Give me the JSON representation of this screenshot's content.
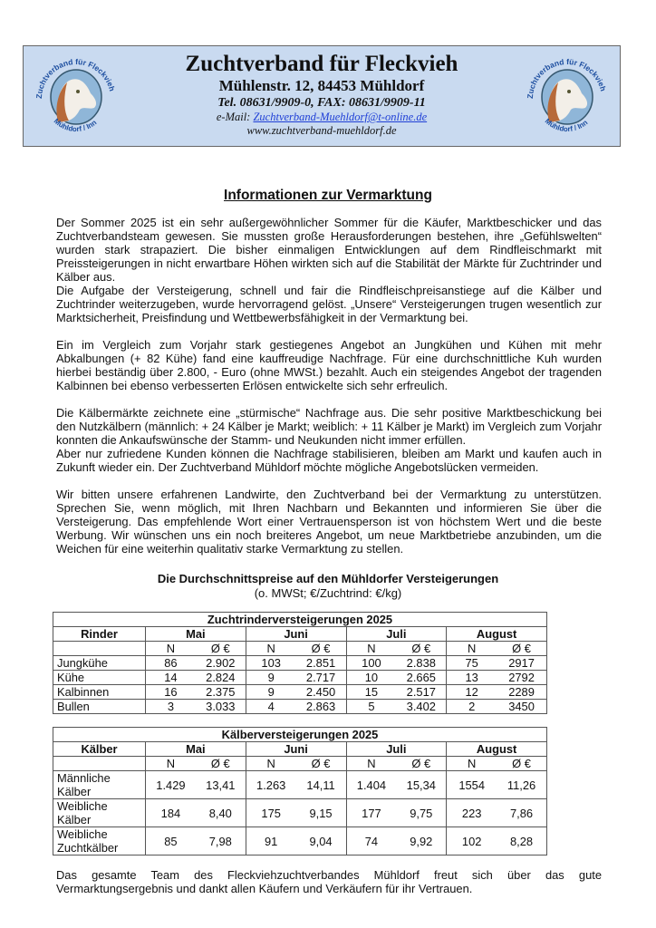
{
  "header": {
    "org_name": "Zuchtverband für Fleckvieh",
    "address": "Mühlenstr. 12, 84453 Mühldorf",
    "phone_fax": "Tel. 08631/9909-0, FAX: 08631/9909-11",
    "email_label": "e-Mail: ",
    "email": "Zuchtverband-Muehldorf@t-online.de",
    "website": "www.zuchtverband-muehldorf.de",
    "logo_text_top": "Zuchtverband für Fleckvieh",
    "logo_text_bottom": "Mühldorf / Inn"
  },
  "title": "Informationen zur Vermarktung",
  "paragraphs": [
    "Der Sommer 2025 ist ein sehr außergewöhnlicher Sommer für die Käufer, Marktbeschicker und das Zuchtverbandsteam gewesen. Sie mussten große Herausforderungen bestehen, ihre „Gefühlswelten“ wurden stark strapaziert. Die bisher einmaligen Entwicklungen auf dem Rindfleischmarkt mit Preissteigerungen in nicht erwartbare Höhen wirkten sich auf die Stabilität der Märkte für Zuchtrinder und Kälber aus.",
    "Die Aufgabe der Versteigerung, schnell und fair die Rindfleischpreisanstiege auf die Kälber und Zuchtrinder weiterzugeben, wurde hervorragend gelöst. „Unsere“ Versteigerungen trugen wesentlich zur Marktsicherheit, Preisfindung und Wettbewerbsfähigkeit in der Vermarktung bei.",
    "Ein im Vergleich zum Vorjahr stark gestiegenes Angebot an Jungkühen und Kühen mit mehr Abkalbungen (+ 82 Kühe) fand eine kauffreudige Nachfrage. Für eine durchschnittliche Kuh wurden hierbei beständig über 2.800, - Euro (ohne MWSt.) bezahlt. Auch ein steigendes Angebot der tragenden Kalbinnen bei ebenso verbesserten Erlösen entwickelte sich sehr erfreulich.",
    "Die Kälbermärkte zeichnete eine „stürmische“ Nachfrage aus. Die sehr positive Marktbeschickung bei den Nutzkälbern (männlich: + 24 Kälber je Markt; weiblich: + 11 Kälber je Markt) im Vergleich zum Vorjahr konnten die Ankaufswünsche der Stamm- und Neukunden nicht immer erfüllen.",
    "Aber nur zufriedene Kunden können die Nachfrage stabilisieren, bleiben am Markt und kaufen auch in Zukunft wieder ein. Der Zuchtverband Mühldorf möchte mögliche Angebotslücken vermeiden.",
    "Wir bitten unsere erfahrenen Landwirte, den Zuchtverband bei der Vermarktung zu unterstützen. Sprechen Sie, wenn möglich, mit Ihren Nachbarn und Bekannten und informieren Sie über die Versteigerung. Das empfehlende Wort einer Vertrauensperson ist von höchstem Wert und die beste Werbung. Wir wünschen uns ein noch breiteres Angebot, um neue Marktbetriebe anzubinden, um die Weichen für eine weiterhin qualitativ starke Vermarktung zu stellen."
  ],
  "tables_title": "Die Durchschnittspreise auf den Mühldorfer Versteigerungen",
  "tables_subtitle": "(o. MWSt; €/Zuchtrind: €/kg)",
  "months": [
    "Mai",
    "Juni",
    "Juli",
    "August"
  ],
  "sub_n": "N",
  "sub_avg": "Ø €",
  "table_rinder": {
    "caption": "Zuchtrinderversteigerungen 2025",
    "row_header": "Rinder",
    "rows": [
      {
        "label": "Jungkühe",
        "values": [
          "86",
          "2.902",
          "103",
          "2.851",
          "100",
          "2.838",
          "75",
          "2917"
        ]
      },
      {
        "label": "Kühe",
        "values": [
          "14",
          "2.824",
          "9",
          "2.717",
          "10",
          "2.665",
          "13",
          "2792"
        ]
      },
      {
        "label": "Kalbinnen",
        "values": [
          "16",
          "2.375",
          "9",
          "2.450",
          "15",
          "2.517",
          "12",
          "2289"
        ]
      },
      {
        "label": "Bullen",
        "values": [
          "3",
          "3.033",
          "4",
          "2.863",
          "5",
          "3.402",
          "2",
          "3450"
        ]
      }
    ]
  },
  "table_kaelber": {
    "caption": "Kälberversteigerungen 2025",
    "row_header": "Kälber",
    "rows": [
      {
        "label1": "Männliche",
        "label2": "Kälber",
        "values": [
          "1.429",
          "13,41",
          "1.263",
          "14,11",
          "1.404",
          "15,34",
          "1554",
          "11,26"
        ]
      },
      {
        "label1": "Weibliche",
        "label2": "Kälber",
        "values": [
          "184",
          "8,40",
          "175",
          "9,15",
          "177",
          "9,75",
          "223",
          "7,86"
        ]
      },
      {
        "label1": "Weibliche",
        "label2": "Zuchtkälber",
        "values": [
          "85",
          "7,98",
          "91",
          "9,04",
          "74",
          "9,92",
          "102",
          "8,28"
        ]
      }
    ]
  },
  "footer": "Das gesamte Team des Fleckviehzuchtverbandes Mühldorf freut sich über das gute Vermarktungsergebnis und dankt allen Käufern und Verkäufern für ihr Vertrauen."
}
